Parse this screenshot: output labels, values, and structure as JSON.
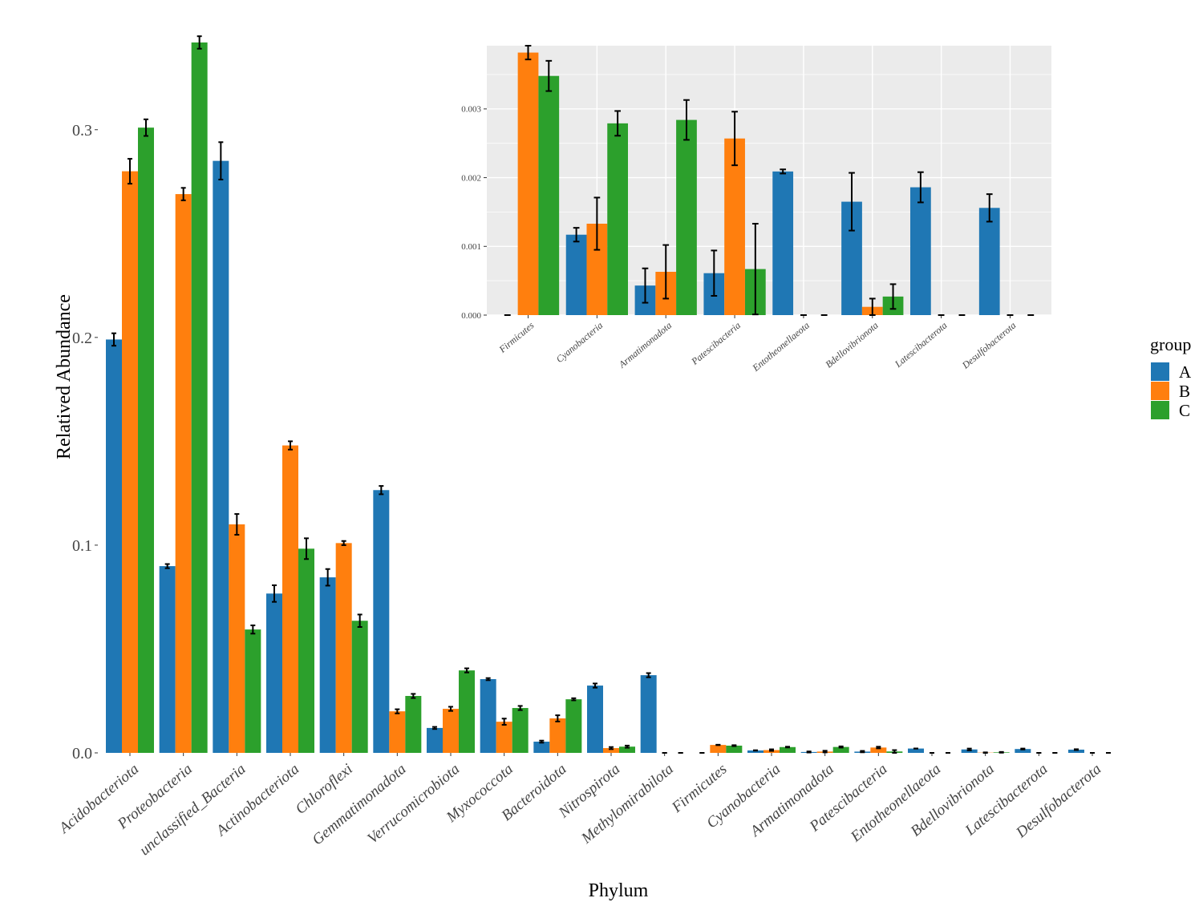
{
  "colors": {
    "A": "#1f77b4",
    "B": "#ff7f0e",
    "C": "#2ca02c"
  },
  "legend": {
    "title": "group",
    "items": [
      "A",
      "B",
      "C"
    ],
    "placement": "right"
  },
  "chart_data": [
    {
      "type": "bar",
      "xlabel": "Phylum",
      "ylabel": "Relatived Abundance",
      "ylim": [
        0,
        0.347
      ],
      "yticks": [
        0.0,
        0.1,
        0.2,
        0.3
      ],
      "ytick_labels": [
        "0.0",
        "0.1",
        "0.2",
        "0.3"
      ],
      "grid": false,
      "categories": [
        "Acidobacteriota",
        "Proteobacteria",
        "unclassified_Bacteria",
        "Actinobacteriota",
        "Chloroflexi",
        "Gemmatimonadota",
        "Verrucomicrobiota",
        "Myxococcota",
        "Bacteroidota",
        "Nitrospirota",
        "Methylomirabilota",
        "Firmicutes",
        "Cyanobacteria",
        "Armatimonadota",
        "Patescibacteria",
        "Entotheonellaeota",
        "Bdellovibrionota",
        "Latescibacterota",
        "Desulfobacterota"
      ],
      "series": [
        {
          "name": "A",
          "values": [
            0.199,
            0.0899,
            0.285,
            0.0767,
            0.0845,
            0.1265,
            0.012,
            0.0355,
            0.0054,
            0.0324,
            0.0374,
            0,
            0.00117,
            0.00043,
            0.00061,
            0.00209,
            0.00165,
            0.00186,
            0.00156
          ],
          "errors": [
            0.003,
            0.001,
            0.009,
            0.004,
            0.004,
            0.002,
            0.0005,
            0.0005,
            0.0005,
            0.001,
            0.001,
            0,
            0.0001,
            0.00025,
            0.00033,
            3e-05,
            0.00042,
            0.00022,
            0.0002
          ]
        },
        {
          "name": "B",
          "values": [
            0.28,
            0.269,
            0.11,
            0.148,
            0.101,
            0.02,
            0.0212,
            0.015,
            0.0166,
            0.0023,
            0,
            0.00382,
            0.00133,
            0.00063,
            0.00257,
            0,
            0.00012,
            0,
            0
          ],
          "errors": [
            0.006,
            0.003,
            0.005,
            0.002,
            0.001,
            0.001,
            0.001,
            0.0015,
            0.0015,
            0.0005,
            0,
            0.0001,
            0.00038,
            0.00039,
            0.00039,
            0,
            0.00012,
            0,
            0
          ]
        },
        {
          "name": "C",
          "values": [
            0.301,
            0.342,
            0.0594,
            0.0983,
            0.0636,
            0.0274,
            0.0397,
            0.0216,
            0.0258,
            0.003,
            0,
            0.00348,
            0.00279,
            0.00284,
            0.00067,
            0,
            0.00027,
            0,
            0
          ],
          "errors": [
            0.004,
            0.003,
            0.002,
            0.005,
            0.003,
            0.001,
            0.001,
            0.001,
            0.0005,
            0.0005,
            0,
            0.00022,
            0.00018,
            0.00029,
            0.00066,
            0,
            0.00018,
            0,
            0
          ]
        }
      ]
    },
    {
      "type": "bar",
      "xlabel": "",
      "ylabel": "",
      "ylim": [
        0,
        0.00392
      ],
      "yticks": [
        0.0,
        0.001,
        0.002,
        0.003
      ],
      "ytick_labels": [
        "0.000",
        "0.001",
        "0.002",
        "0.003"
      ],
      "grid": true,
      "categories": [
        "Firmicutes",
        "Cyanobacteria",
        "Armatimonadota",
        "Patescibacteria",
        "Entotheonellaeota",
        "Bdellovibrionota",
        "Latescibacterota",
        "Desulfobacterota"
      ],
      "series": [
        {
          "name": "A",
          "values": [
            0,
            0.00117,
            0.00043,
            0.00061,
            0.00209,
            0.00165,
            0.00186,
            0.00156
          ],
          "errors": [
            0,
            0.0001,
            0.00025,
            0.00033,
            3e-05,
            0.00042,
            0.00022,
            0.0002
          ]
        },
        {
          "name": "B",
          "values": [
            0.00382,
            0.00133,
            0.00063,
            0.00257,
            0,
            0.00012,
            0,
            0
          ],
          "errors": [
            0.0001,
            0.00038,
            0.00039,
            0.00039,
            0,
            0.00012,
            0,
            0
          ]
        },
        {
          "name": "C",
          "values": [
            0.00348,
            0.00279,
            0.00284,
            0.00067,
            0,
            0.00027,
            0,
            0
          ],
          "errors": [
            0.00022,
            0.00018,
            0.00029,
            0.00066,
            0,
            0.00018,
            0,
            0
          ]
        }
      ]
    }
  ]
}
